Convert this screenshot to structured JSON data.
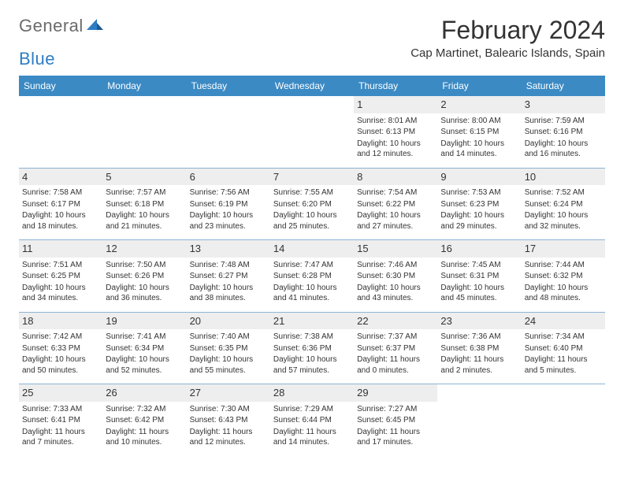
{
  "logo": {
    "general": "General",
    "blue": "Blue"
  },
  "title": "February 2024",
  "location": "Cap Martinet, Balearic Islands, Spain",
  "colors": {
    "header_bg": "#3b8ac4",
    "border": "#8cb4d6",
    "daynum_bg": "#eeeeee",
    "text": "#333333",
    "logo_gray": "#6b6b6b",
    "logo_blue": "#2d7dc3"
  },
  "weekdays": [
    "Sunday",
    "Monday",
    "Tuesday",
    "Wednesday",
    "Thursday",
    "Friday",
    "Saturday"
  ],
  "weeks": [
    [
      {
        "day": "",
        "sunrise": "",
        "sunset": "",
        "daylight": "",
        "empty": true
      },
      {
        "day": "",
        "sunrise": "",
        "sunset": "",
        "daylight": "",
        "empty": true
      },
      {
        "day": "",
        "sunrise": "",
        "sunset": "",
        "daylight": "",
        "empty": true
      },
      {
        "day": "",
        "sunrise": "",
        "sunset": "",
        "daylight": "",
        "empty": true
      },
      {
        "day": "1",
        "sunrise": "Sunrise: 8:01 AM",
        "sunset": "Sunset: 6:13 PM",
        "daylight": "Daylight: 10 hours and 12 minutes."
      },
      {
        "day": "2",
        "sunrise": "Sunrise: 8:00 AM",
        "sunset": "Sunset: 6:15 PM",
        "daylight": "Daylight: 10 hours and 14 minutes."
      },
      {
        "day": "3",
        "sunrise": "Sunrise: 7:59 AM",
        "sunset": "Sunset: 6:16 PM",
        "daylight": "Daylight: 10 hours and 16 minutes."
      }
    ],
    [
      {
        "day": "4",
        "sunrise": "Sunrise: 7:58 AM",
        "sunset": "Sunset: 6:17 PM",
        "daylight": "Daylight: 10 hours and 18 minutes."
      },
      {
        "day": "5",
        "sunrise": "Sunrise: 7:57 AM",
        "sunset": "Sunset: 6:18 PM",
        "daylight": "Daylight: 10 hours and 21 minutes."
      },
      {
        "day": "6",
        "sunrise": "Sunrise: 7:56 AM",
        "sunset": "Sunset: 6:19 PM",
        "daylight": "Daylight: 10 hours and 23 minutes."
      },
      {
        "day": "7",
        "sunrise": "Sunrise: 7:55 AM",
        "sunset": "Sunset: 6:20 PM",
        "daylight": "Daylight: 10 hours and 25 minutes."
      },
      {
        "day": "8",
        "sunrise": "Sunrise: 7:54 AM",
        "sunset": "Sunset: 6:22 PM",
        "daylight": "Daylight: 10 hours and 27 minutes."
      },
      {
        "day": "9",
        "sunrise": "Sunrise: 7:53 AM",
        "sunset": "Sunset: 6:23 PM",
        "daylight": "Daylight: 10 hours and 29 minutes."
      },
      {
        "day": "10",
        "sunrise": "Sunrise: 7:52 AM",
        "sunset": "Sunset: 6:24 PM",
        "daylight": "Daylight: 10 hours and 32 minutes."
      }
    ],
    [
      {
        "day": "11",
        "sunrise": "Sunrise: 7:51 AM",
        "sunset": "Sunset: 6:25 PM",
        "daylight": "Daylight: 10 hours and 34 minutes."
      },
      {
        "day": "12",
        "sunrise": "Sunrise: 7:50 AM",
        "sunset": "Sunset: 6:26 PM",
        "daylight": "Daylight: 10 hours and 36 minutes."
      },
      {
        "day": "13",
        "sunrise": "Sunrise: 7:48 AM",
        "sunset": "Sunset: 6:27 PM",
        "daylight": "Daylight: 10 hours and 38 minutes."
      },
      {
        "day": "14",
        "sunrise": "Sunrise: 7:47 AM",
        "sunset": "Sunset: 6:28 PM",
        "daylight": "Daylight: 10 hours and 41 minutes."
      },
      {
        "day": "15",
        "sunrise": "Sunrise: 7:46 AM",
        "sunset": "Sunset: 6:30 PM",
        "daylight": "Daylight: 10 hours and 43 minutes."
      },
      {
        "day": "16",
        "sunrise": "Sunrise: 7:45 AM",
        "sunset": "Sunset: 6:31 PM",
        "daylight": "Daylight: 10 hours and 45 minutes."
      },
      {
        "day": "17",
        "sunrise": "Sunrise: 7:44 AM",
        "sunset": "Sunset: 6:32 PM",
        "daylight": "Daylight: 10 hours and 48 minutes."
      }
    ],
    [
      {
        "day": "18",
        "sunrise": "Sunrise: 7:42 AM",
        "sunset": "Sunset: 6:33 PM",
        "daylight": "Daylight: 10 hours and 50 minutes."
      },
      {
        "day": "19",
        "sunrise": "Sunrise: 7:41 AM",
        "sunset": "Sunset: 6:34 PM",
        "daylight": "Daylight: 10 hours and 52 minutes."
      },
      {
        "day": "20",
        "sunrise": "Sunrise: 7:40 AM",
        "sunset": "Sunset: 6:35 PM",
        "daylight": "Daylight: 10 hours and 55 minutes."
      },
      {
        "day": "21",
        "sunrise": "Sunrise: 7:38 AM",
        "sunset": "Sunset: 6:36 PM",
        "daylight": "Daylight: 10 hours and 57 minutes."
      },
      {
        "day": "22",
        "sunrise": "Sunrise: 7:37 AM",
        "sunset": "Sunset: 6:37 PM",
        "daylight": "Daylight: 11 hours and 0 minutes."
      },
      {
        "day": "23",
        "sunrise": "Sunrise: 7:36 AM",
        "sunset": "Sunset: 6:38 PM",
        "daylight": "Daylight: 11 hours and 2 minutes."
      },
      {
        "day": "24",
        "sunrise": "Sunrise: 7:34 AM",
        "sunset": "Sunset: 6:40 PM",
        "daylight": "Daylight: 11 hours and 5 minutes."
      }
    ],
    [
      {
        "day": "25",
        "sunrise": "Sunrise: 7:33 AM",
        "sunset": "Sunset: 6:41 PM",
        "daylight": "Daylight: 11 hours and 7 minutes."
      },
      {
        "day": "26",
        "sunrise": "Sunrise: 7:32 AM",
        "sunset": "Sunset: 6:42 PM",
        "daylight": "Daylight: 11 hours and 10 minutes."
      },
      {
        "day": "27",
        "sunrise": "Sunrise: 7:30 AM",
        "sunset": "Sunset: 6:43 PM",
        "daylight": "Daylight: 11 hours and 12 minutes."
      },
      {
        "day": "28",
        "sunrise": "Sunrise: 7:29 AM",
        "sunset": "Sunset: 6:44 PM",
        "daylight": "Daylight: 11 hours and 14 minutes."
      },
      {
        "day": "29",
        "sunrise": "Sunrise: 7:27 AM",
        "sunset": "Sunset: 6:45 PM",
        "daylight": "Daylight: 11 hours and 17 minutes."
      },
      {
        "day": "",
        "sunrise": "",
        "sunset": "",
        "daylight": "",
        "empty": true
      },
      {
        "day": "",
        "sunrise": "",
        "sunset": "",
        "daylight": "",
        "empty": true
      }
    ]
  ]
}
